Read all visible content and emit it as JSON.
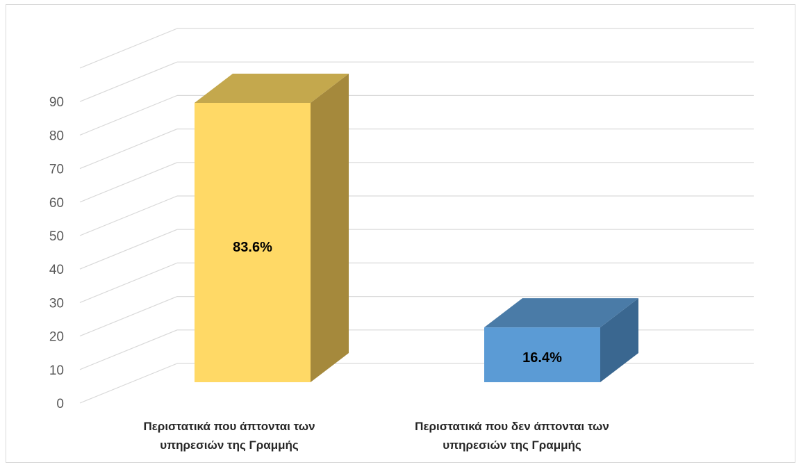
{
  "chart_data": {
    "type": "bar",
    "categories": [
      [
        "Περιστατικά που άπτονται των",
        "υπηρεσιών της Γραμμής"
      ],
      [
        "Περιστατικά που δεν άπτονται των",
        "υπηρεσιών της Γραμμής"
      ]
    ],
    "values": [
      83.6,
      16.4
    ],
    "data_labels": [
      "83.6%",
      "16.4%"
    ],
    "yticks": [
      "0",
      "10",
      "20",
      "30",
      "40",
      "50",
      "60",
      "70",
      "80",
      "90"
    ],
    "ylim": [
      0,
      90
    ],
    "grid": true,
    "colors": {
      "bar1_front": "#FFD966",
      "bar1_top": "#C4A84D",
      "bar1_side": "#A5893C",
      "bar2_front": "#5B9BD5",
      "bar2_top": "#4A7BA7",
      "bar2_side": "#3A6790",
      "grid": "#D9D9D9",
      "tick_text": "#595959"
    }
  }
}
